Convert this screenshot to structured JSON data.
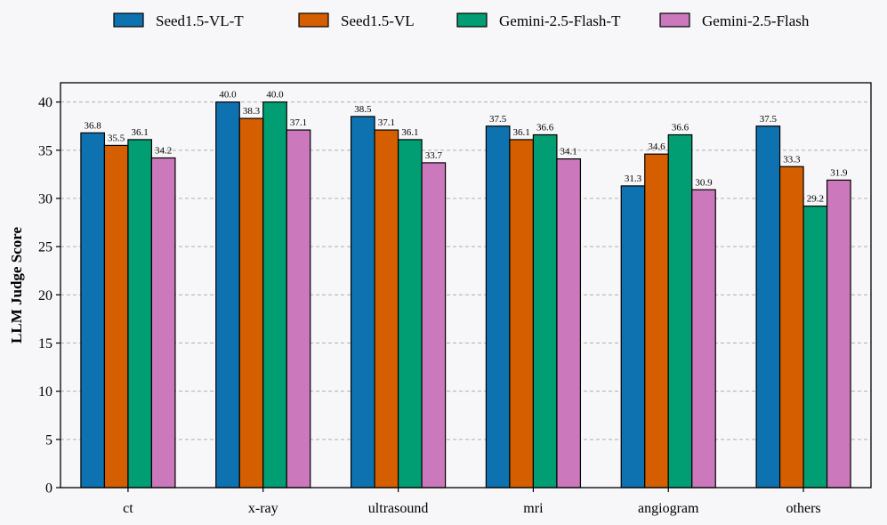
{
  "chart_data": {
    "type": "bar",
    "title": "",
    "xlabel": "",
    "ylabel": "LLM Judge Score",
    "ylim": [
      0,
      42
    ],
    "yticks": [
      0,
      5,
      10,
      15,
      20,
      25,
      30,
      35,
      40
    ],
    "grid": "horizontal-dashed",
    "legend_position": "top",
    "categories": [
      "ct",
      "x-ray",
      "ultrasound",
      "mri",
      "angiogram",
      "others"
    ],
    "series": [
      {
        "name": "Seed1.5-VL-T",
        "color": "#0f72b0",
        "values": [
          36.8,
          40.0,
          38.5,
          37.5,
          31.3,
          37.5
        ]
      },
      {
        "name": "Seed1.5-VL",
        "color": "#d55e00",
        "values": [
          35.5,
          38.3,
          37.1,
          36.1,
          34.6,
          33.3
        ]
      },
      {
        "name": "Gemini-2.5-Flash-T",
        "color": "#029e73",
        "values": [
          36.1,
          40.0,
          36.1,
          36.6,
          36.6,
          29.2
        ]
      },
      {
        "name": "Gemini-2.5-Flash",
        "color": "#cc78bc",
        "values": [
          34.2,
          37.1,
          33.7,
          34.1,
          30.9,
          31.9
        ]
      }
    ]
  }
}
